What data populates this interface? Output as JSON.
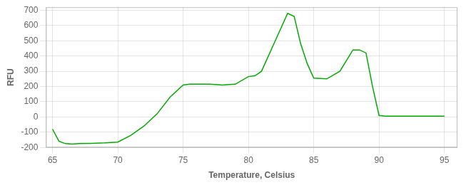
{
  "chart_data": {
    "type": "line",
    "xlabel": "Temperature, Celsius",
    "ylabel": "RFU",
    "x": [
      65,
      65.5,
      66,
      66.5,
      67,
      68,
      69,
      70,
      71,
      72,
      73,
      74,
      75,
      75.5,
      76,
      77,
      78,
      79,
      80,
      80.5,
      81,
      82,
      83,
      83.5,
      84,
      84.5,
      85,
      86,
      87,
      88,
      88.5,
      89,
      89.5,
      90,
      90.5,
      91,
      92,
      93,
      94,
      95
    ],
    "values": [
      -80,
      -160,
      -175,
      -178,
      -175,
      -173,
      -170,
      -165,
      -120,
      -60,
      20,
      130,
      210,
      215,
      215,
      215,
      210,
      215,
      265,
      270,
      300,
      490,
      680,
      660,
      480,
      350,
      255,
      250,
      300,
      440,
      440,
      420,
      200,
      10,
      5,
      5,
      5,
      5,
      5,
      5
    ],
    "color": "#00aa00",
    "xlim": [
      64.5,
      96
    ],
    "ylim": [
      -200,
      720
    ],
    "xticks": [
      65,
      70,
      75,
      80,
      85,
      90,
      95
    ],
    "yticks": [
      -200,
      -100,
      0,
      100,
      200,
      300,
      400,
      500,
      600,
      700
    ],
    "grid": true
  }
}
